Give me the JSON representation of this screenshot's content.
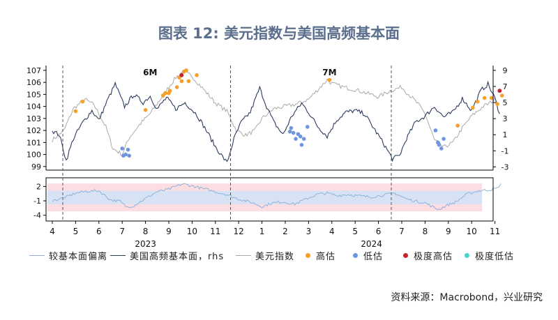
{
  "title": "图表 12: 美元指数与美国高频基本面",
  "source": "资料来源：Macrobond，兴业研究",
  "legend": [
    {
      "name": "较基本面偏离",
      "kind": "line",
      "color": "#8fb2dc"
    },
    {
      "name": "美国高频基本面，rhs",
      "kind": "line",
      "color": "#2b3a5e"
    },
    {
      "name": "美元指数",
      "kind": "line",
      "color": "#a9a9a9"
    },
    {
      "name": "高估",
      "kind": "dot",
      "color": "#f5a02a"
    },
    {
      "name": "低估",
      "kind": "dot",
      "color": "#6f96dd"
    },
    {
      "name": "极度高估",
      "kind": "dot",
      "color": "#c0262d"
    },
    {
      "name": "极度低估",
      "kind": "dot",
      "color": "#46d2c8"
    }
  ],
  "chart_data": {
    "type": "line",
    "x_month_ticks": [
      "4",
      "5",
      "6",
      "7",
      "8",
      "9",
      "10",
      "11",
      "12",
      "1",
      "2",
      "3",
      "4",
      "5",
      "6",
      "7",
      "8",
      "9",
      "10",
      "11"
    ],
    "x_year_labels": [
      "2023",
      "2024"
    ],
    "annotations": [
      "6M",
      "7M"
    ],
    "colors": {
      "dxy": "#a9a9a9",
      "fund": "#2b3a5e",
      "dev": "#8fb2dc",
      "band_inner": "#d7e3f4",
      "band_outer": "#fbdde2",
      "high": "#f5a02a",
      "low": "#6f96dd",
      "extreme_high": "#c0262d",
      "extreme_low": "#46d2c8"
    },
    "top_panel": {
      "left_axis": {
        "ylim": [
          98.7,
          107.4
        ],
        "ticks": [
          "99",
          "100",
          "101",
          "102",
          "103",
          "104",
          "105",
          "106",
          "107"
        ]
      },
      "right_axis": {
        "ylim": [
          -3.4,
          9.6
        ],
        "ticks": [
          "-3",
          "-1",
          "1",
          "3",
          "5",
          "7",
          "9"
        ]
      },
      "dxy_keypoints": [
        [
          0,
          101.2
        ],
        [
          0.5,
          102.0
        ],
        [
          0.9,
          103.8
        ],
        [
          1.4,
          104.6
        ],
        [
          1.8,
          104.1
        ],
        [
          2.3,
          102.3
        ],
        [
          2.6,
          100.5
        ],
        [
          3.0,
          100.0
        ],
        [
          3.3,
          101.4
        ],
        [
          3.8,
          102.6
        ],
        [
          4.2,
          103.4
        ],
        [
          4.6,
          104.5
        ],
        [
          5.0,
          105.6
        ],
        [
          5.3,
          106.4
        ],
        [
          5.6,
          106.9
        ],
        [
          6.0,
          106.5
        ],
        [
          6.5,
          105.4
        ],
        [
          7.0,
          104.3
        ],
        [
          7.5,
          103.6
        ],
        [
          7.9,
          102.0
        ],
        [
          8.3,
          101.6
        ],
        [
          8.7,
          102.0
        ],
        [
          9.0,
          103.0
        ],
        [
          9.5,
          103.8
        ],
        [
          10.0,
          104.0
        ],
        [
          10.5,
          104.2
        ],
        [
          11.0,
          104.6
        ],
        [
          11.5,
          105.6
        ],
        [
          11.8,
          106.2
        ],
        [
          12.0,
          105.9
        ],
        [
          12.5,
          105.6
        ],
        [
          13.0,
          105.4
        ],
        [
          13.5,
          105.1
        ],
        [
          14.0,
          104.8
        ],
        [
          14.5,
          105.3
        ],
        [
          15.0,
          105.6
        ],
        [
          15.4,
          104.8
        ],
        [
          15.7,
          104.2
        ],
        [
          16.0,
          103.4
        ],
        [
          16.4,
          101.2
        ],
        [
          16.8,
          100.6
        ],
        [
          17.2,
          101.0
        ],
        [
          17.6,
          102.2
        ],
        [
          18.0,
          103.2
        ],
        [
          18.5,
          104.0
        ],
        [
          18.8,
          104.3
        ],
        [
          19.0,
          104.6
        ],
        [
          19.2,
          104.2
        ]
      ],
      "fund_keypoints": [
        [
          0,
          1.5
        ],
        [
          0.3,
          1.0
        ],
        [
          0.6,
          -2.2
        ],
        [
          0.9,
          0.5
        ],
        [
          1.3,
          2.5
        ],
        [
          1.7,
          4.0
        ],
        [
          2.0,
          2.8
        ],
        [
          2.4,
          5.5
        ],
        [
          2.7,
          7.3
        ],
        [
          3.1,
          4.5
        ],
        [
          3.5,
          6.0
        ],
        [
          3.9,
          5.0
        ],
        [
          4.2,
          5.8
        ],
        [
          4.5,
          4.2
        ],
        [
          4.9,
          5.6
        ],
        [
          5.3,
          4.2
        ],
        [
          5.7,
          5.0
        ],
        [
          6.2,
          3.5
        ],
        [
          6.6,
          1.6
        ],
        [
          7.0,
          -0.5
        ],
        [
          7.5,
          -2.5
        ],
        [
          7.8,
          0.5
        ],
        [
          8.1,
          2.5
        ],
        [
          8.5,
          3.8
        ],
        [
          8.9,
          6.8
        ],
        [
          9.2,
          4.5
        ],
        [
          9.5,
          2.6
        ],
        [
          9.9,
          1.0
        ],
        [
          10.3,
          3.4
        ],
        [
          10.7,
          4.9
        ],
        [
          11.0,
          3.8
        ],
        [
          11.4,
          2.0
        ],
        [
          11.8,
          0.8
        ],
        [
          12.2,
          2.8
        ],
        [
          12.6,
          3.8
        ],
        [
          13.0,
          4.0
        ],
        [
          13.4,
          3.6
        ],
        [
          13.8,
          1.8
        ],
        [
          14.2,
          0.0
        ],
        [
          14.6,
          -2.0
        ],
        [
          14.9,
          -1.6
        ],
        [
          15.2,
          0.5
        ],
        [
          15.6,
          2.6
        ],
        [
          16.0,
          3.3
        ],
        [
          16.4,
          4.5
        ],
        [
          16.8,
          3.2
        ],
        [
          17.2,
          3.8
        ],
        [
          17.6,
          5.5
        ],
        [
          18.0,
          4.0
        ],
        [
          18.4,
          6.5
        ],
        [
          18.7,
          7.3
        ],
        [
          19.0,
          5.5
        ],
        [
          19.2,
          3.6
        ]
      ],
      "high_points": [
        [
          1.0,
          103.6
        ],
        [
          1.3,
          104.4
        ],
        [
          4.0,
          103.7
        ],
        [
          4.75,
          104.9
        ],
        [
          4.85,
          105.1
        ],
        [
          5.0,
          105.1
        ],
        [
          5.05,
          105.3
        ],
        [
          5.35,
          105.6
        ],
        [
          5.45,
          106.4
        ],
        [
          5.55,
          106.1
        ],
        [
          5.65,
          106.9
        ],
        [
          5.75,
          107.0
        ],
        [
          5.85,
          106.1
        ],
        [
          6.2,
          106.6
        ],
        [
          11.9,
          106.2
        ],
        [
          17.4,
          102.4
        ],
        [
          18.05,
          103.9
        ],
        [
          18.25,
          104.4
        ],
        [
          18.55,
          104.7
        ],
        [
          18.85,
          104.7
        ],
        [
          19.1,
          104.2
        ],
        [
          19.3,
          104.9
        ]
      ],
      "low_points": [
        [
          3.0,
          100.5
        ],
        [
          3.05,
          99.9
        ],
        [
          3.15,
          100.0
        ],
        [
          3.25,
          100.4
        ],
        [
          3.3,
          99.9
        ],
        [
          10.2,
          101.9
        ],
        [
          10.25,
          102.2
        ],
        [
          10.35,
          101.8
        ],
        [
          10.45,
          101.3
        ],
        [
          10.55,
          101.7
        ],
        [
          10.65,
          101.5
        ],
        [
          10.7,
          100.8
        ],
        [
          10.8,
          101.3
        ],
        [
          10.95,
          102.3
        ],
        [
          16.45,
          102.0
        ],
        [
          16.55,
          101.0
        ],
        [
          16.6,
          100.8
        ],
        [
          16.7,
          100.5
        ],
        [
          16.8,
          101.3
        ]
      ],
      "extreme_high_points": [
        [
          5.55,
          106.6
        ],
        [
          19.2,
          105.3
        ]
      ],
      "extreme_low_points": []
    },
    "bottom_panel": {
      "ylim": [
        -5.2,
        3.8
      ],
      "ticks": [
        "2",
        "-1",
        "-4"
      ],
      "band_inner": [
        -1.7,
        1.1
      ],
      "band_outer": [
        -3.2,
        2.6
      ],
      "dev_keypoints": [
        [
          0,
          -1.0
        ],
        [
          0.6,
          -0.2
        ],
        [
          1.0,
          0.6
        ],
        [
          1.5,
          1.0
        ],
        [
          2.0,
          1.1
        ],
        [
          2.5,
          -0.8
        ],
        [
          2.9,
          -1.1
        ],
        [
          3.2,
          -2.3
        ],
        [
          3.5,
          -2.0
        ],
        [
          3.9,
          -0.8
        ],
        [
          4.5,
          0.9
        ],
        [
          5.0,
          1.4
        ],
        [
          5.3,
          2.0
        ],
        [
          5.6,
          2.5
        ],
        [
          6.0,
          2.1
        ],
        [
          6.5,
          1.5
        ],
        [
          7.0,
          0.9
        ],
        [
          7.5,
          0.3
        ],
        [
          7.9,
          -0.5
        ],
        [
          8.3,
          -1.0
        ],
        [
          8.7,
          -1.6
        ],
        [
          9.0,
          -2.2
        ],
        [
          9.4,
          -1.5
        ],
        [
          9.9,
          -1.2
        ],
        [
          10.4,
          -1.7
        ],
        [
          10.9,
          -0.6
        ],
        [
          11.4,
          0.4
        ],
        [
          11.8,
          0.6
        ],
        [
          12.2,
          0.1
        ],
        [
          12.7,
          0.3
        ],
        [
          13.2,
          0.0
        ],
        [
          13.7,
          -0.2
        ],
        [
          14.2,
          0.2
        ],
        [
          14.7,
          0.6
        ],
        [
          15.2,
          -0.6
        ],
        [
          15.7,
          -1.2
        ],
        [
          16.0,
          -1.4
        ],
        [
          16.3,
          -2.2
        ],
        [
          16.6,
          -2.8
        ],
        [
          16.9,
          -2.0
        ],
        [
          17.3,
          -1.3
        ],
        [
          17.8,
          0.4
        ],
        [
          18.3,
          1.1
        ],
        [
          18.8,
          1.3
        ],
        [
          19.1,
          1.6
        ],
        [
          19.25,
          2.6
        ]
      ]
    }
  }
}
